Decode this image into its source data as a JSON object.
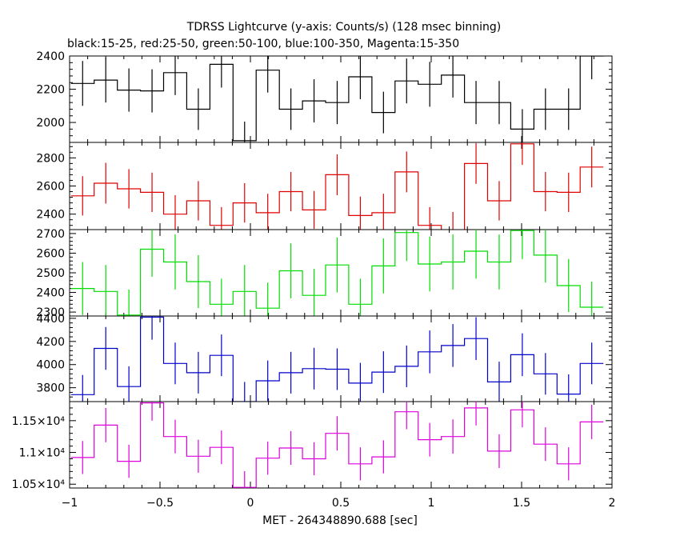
{
  "title": "TDRSS Lightcurve (y-axis: Counts/s) (128 msec binning)",
  "subtitle": "black:15-25, red:25-50, green:50-100, blue:100-350, Magenta:15-350",
  "xlabel": "MET - 264348890.688 [sec]",
  "chart_data": {
    "type": "line",
    "drawstyle": "steps-mid",
    "xlim": [
      -1,
      2
    ],
    "x_ticks": [
      -1,
      -0.5,
      0,
      0.5,
      1,
      1.5,
      2
    ],
    "x_tick_labels": [
      "−1",
      "−0.5",
      "0",
      "0.5",
      "1",
      "1.5",
      "2"
    ],
    "x": [
      -0.928,
      -0.8,
      -0.672,
      -0.544,
      -0.416,
      -0.288,
      -0.16,
      -0.032,
      0.096,
      0.224,
      0.352,
      0.48,
      0.608,
      0.736,
      0.864,
      0.992,
      1.12,
      1.248,
      1.376,
      1.504,
      1.632,
      1.76,
      1.888
    ],
    "x_error": 0.064,
    "panels": [
      {
        "name": "black:15-25",
        "color": "#000000",
        "ylim": [
          1880,
          2400
        ],
        "y_ticks": [
          2000,
          2200,
          2400
        ],
        "y_tick_labels": [
          "2000",
          "2200",
          "2400"
        ],
        "values": [
          2235,
          2255,
          2195,
          2190,
          2300,
          2080,
          2350,
          1890,
          2315,
          2080,
          2130,
          2120,
          2275,
          2060,
          2250,
          2230,
          2285,
          2120,
          2120,
          1960,
          2080,
          2080,
          2400
        ],
        "errors": [
          135,
          135,
          130,
          130,
          135,
          125,
          140,
          115,
          135,
          125,
          130,
          130,
          135,
          125,
          135,
          135,
          135,
          130,
          130,
          120,
          125,
          125,
          140
        ]
      },
      {
        "name": "red:25-50",
        "color": "#e00000",
        "ylim": [
          2290,
          2910
        ],
        "y_ticks": [
          2400,
          2600,
          2800
        ],
        "y_tick_labels": [
          "2400",
          "2600",
          "2800"
        ],
        "values": [
          2530,
          2620,
          2580,
          2555,
          2400,
          2495,
          2320,
          2480,
          2410,
          2560,
          2430,
          2680,
          2390,
          2410,
          2700,
          2320,
          2285,
          2760,
          2495,
          2900,
          2560,
          2555,
          2735
        ],
        "errors": [
          140,
          145,
          140,
          140,
          135,
          140,
          130,
          140,
          135,
          140,
          135,
          145,
          135,
          135,
          145,
          130,
          130,
          145,
          140,
          150,
          140,
          140,
          145
        ]
      },
      {
        "name": "green:50-100",
        "color": "#00dd00",
        "ylim": [
          2280,
          2720
        ],
        "y_ticks": [
          2300,
          2400,
          2500,
          2600,
          2700
        ],
        "y_tick_labels": [
          "2300",
          "2400",
          "2500",
          "2600",
          "2700"
        ],
        "values": [
          2420,
          2405,
          2285,
          2620,
          2555,
          2455,
          2340,
          2405,
          2320,
          2510,
          2385,
          2540,
          2340,
          2535,
          2705,
          2545,
          2555,
          2610,
          2555,
          2715,
          2590,
          2435,
          2325
        ],
        "errors": [
          135,
          135,
          130,
          140,
          140,
          135,
          130,
          135,
          130,
          140,
          135,
          140,
          130,
          140,
          145,
          140,
          140,
          140,
          140,
          145,
          140,
          135,
          130
        ]
      },
      {
        "name": "blue:100-350",
        "color": "#0000cc",
        "ylim": [
          3680,
          4420
        ],
        "y_ticks": [
          3800,
          4000,
          4200,
          4400
        ],
        "y_tick_labels": [
          "3800",
          "4000",
          "4200",
          "4400"
        ],
        "values": [
          3740,
          4140,
          3810,
          4410,
          4010,
          3930,
          4080,
          3680,
          3860,
          3930,
          3965,
          3960,
          3840,
          3935,
          3985,
          4110,
          4165,
          4225,
          3850,
          4085,
          3920,
          3745,
          4010
        ],
        "errors": [
          170,
          185,
          175,
          195,
          180,
          180,
          180,
          170,
          175,
          180,
          180,
          180,
          175,
          180,
          180,
          185,
          185,
          185,
          175,
          185,
          180,
          170,
          180
        ]
      },
      {
        "name": "Magenta:15-350",
        "color": "#dd00dd",
        "ylim": [
          10440,
          11800
        ],
        "y_ticks": [
          10500,
          11000,
          11500
        ],
        "y_tick_labels": [
          "1.05×10⁴",
          "1.1×10⁴",
          "1.15×10⁴"
        ],
        "values": [
          10920,
          11430,
          10860,
          11780,
          11250,
          10940,
          11080,
          10450,
          10910,
          11070,
          10900,
          11300,
          10820,
          10930,
          11640,
          11200,
          11250,
          11700,
          11020,
          11670,
          11130,
          10820,
          11480
        ],
        "errors": [
          260,
          270,
          260,
          280,
          265,
          260,
          265,
          255,
          260,
          265,
          260,
          270,
          260,
          260,
          275,
          265,
          270,
          275,
          265,
          275,
          265,
          260,
          270
        ]
      }
    ]
  }
}
